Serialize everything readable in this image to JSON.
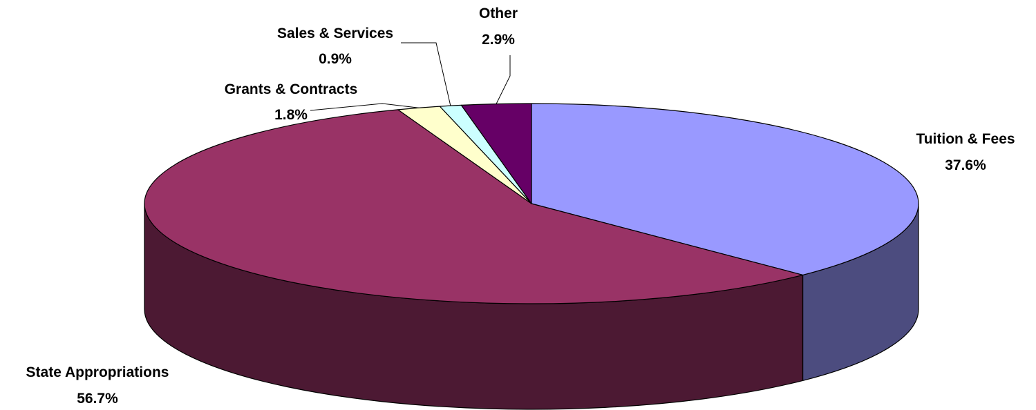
{
  "chart_data": {
    "type": "pie",
    "style": "3d",
    "title": "",
    "slices": [
      {
        "name": "Tuition & Fees",
        "value": 37.6,
        "label": "37.6%",
        "color": "#9999ff",
        "side_color": "#4c4c7f"
      },
      {
        "name": "State Appropriations",
        "value": 56.7,
        "label": "56.7%",
        "color": "#993366",
        "side_color": "#4c1933"
      },
      {
        "name": "Grants & Contracts",
        "value": 1.8,
        "label": "1.8%",
        "color": "#ffffcc",
        "side_color": "#7f7f66"
      },
      {
        "name": "Sales & Services",
        "value": 0.9,
        "label": "0.9%",
        "color": "#ccffff",
        "side_color": "#667f7f"
      },
      {
        "name": "Other",
        "value": 2.9,
        "label": "2.9%",
        "color": "#660066",
        "side_color": "#330033"
      }
    ],
    "legend": "none"
  }
}
